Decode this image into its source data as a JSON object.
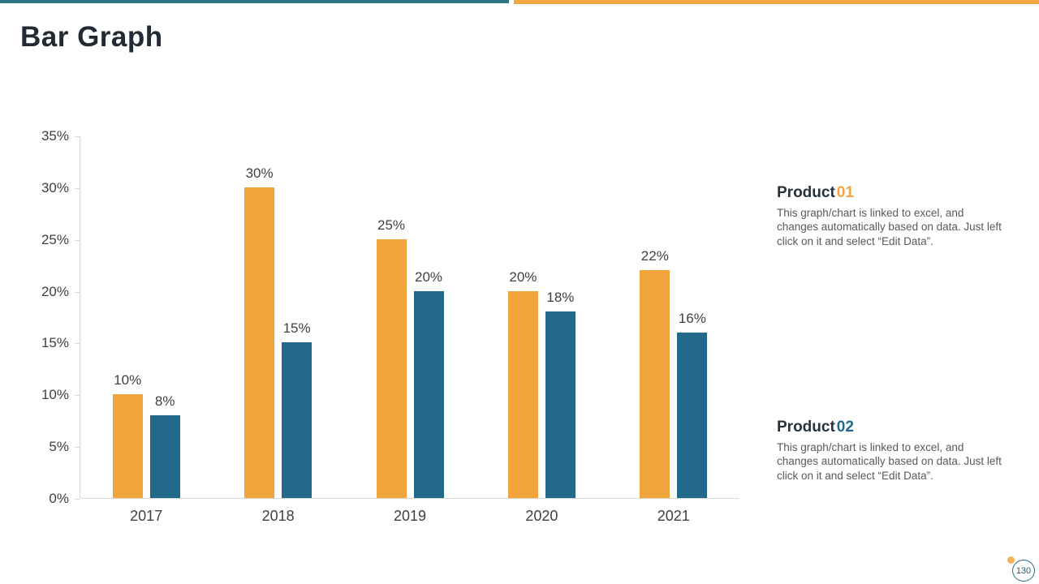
{
  "title": "Bar Graph",
  "page_number": "130",
  "colors": {
    "orange": "#F2A43C",
    "teal": "#22698C",
    "top_teal": "#2E7386",
    "top_orange": "#EFA73E",
    "axis_line": "#D9D9D9",
    "tick_text": "#404040",
    "body_text": "#595959"
  },
  "chart_data": {
    "type": "bar",
    "categories": [
      "2017",
      "2018",
      "2019",
      "2020",
      "2021"
    ],
    "series": [
      {
        "name": "Product 01",
        "color_key": "orange",
        "values": [
          10,
          30,
          25,
          20,
          22
        ]
      },
      {
        "name": "Product 02",
        "color_key": "teal",
        "values": [
          8,
          15,
          20,
          18,
          16
        ]
      }
    ],
    "title": "",
    "xlabel": "",
    "ylabel": "",
    "ylim": [
      0,
      35
    ],
    "ytick_step": 5,
    "value_suffix": "%",
    "grid": false,
    "legend_position": "none",
    "data_labels": true
  },
  "products": [
    {
      "name": "Product",
      "number": "01",
      "description": "This graph/chart is linked to excel, and changes automatically based on data. Just left click on it and select “Edit Data”."
    },
    {
      "name": "Product",
      "number": "02",
      "description": "This graph/chart is linked to excel, and changes automatically based on data. Just left click on it and select “Edit Data”."
    }
  ]
}
